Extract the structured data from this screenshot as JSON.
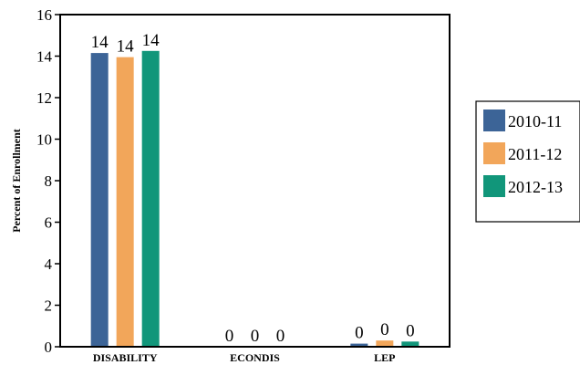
{
  "chart_data": {
    "type": "bar",
    "title": "",
    "xlabel": "",
    "ylabel": "Percent of Enrollment",
    "ylim": [
      0,
      16
    ],
    "yticks": [
      0,
      2,
      4,
      6,
      8,
      10,
      12,
      14,
      16
    ],
    "grid": false,
    "legend_position": "right",
    "categories": [
      "DISABILITY",
      "ECONDIS",
      "LEP"
    ],
    "series": [
      {
        "name": "2010-11",
        "color": "#3C6497",
        "values": [
          14.15,
          0,
          0.15
        ],
        "data_labels": [
          "14",
          "0",
          "0"
        ]
      },
      {
        "name": "2011-12",
        "color": "#F2A65A",
        "values": [
          13.95,
          0,
          0.3
        ],
        "data_labels": [
          "14",
          "0",
          "0"
        ]
      },
      {
        "name": "2012-13",
        "color": "#11967A",
        "values": [
          14.25,
          0,
          0.25
        ],
        "data_labels": [
          "14",
          "0",
          "0"
        ]
      }
    ]
  }
}
